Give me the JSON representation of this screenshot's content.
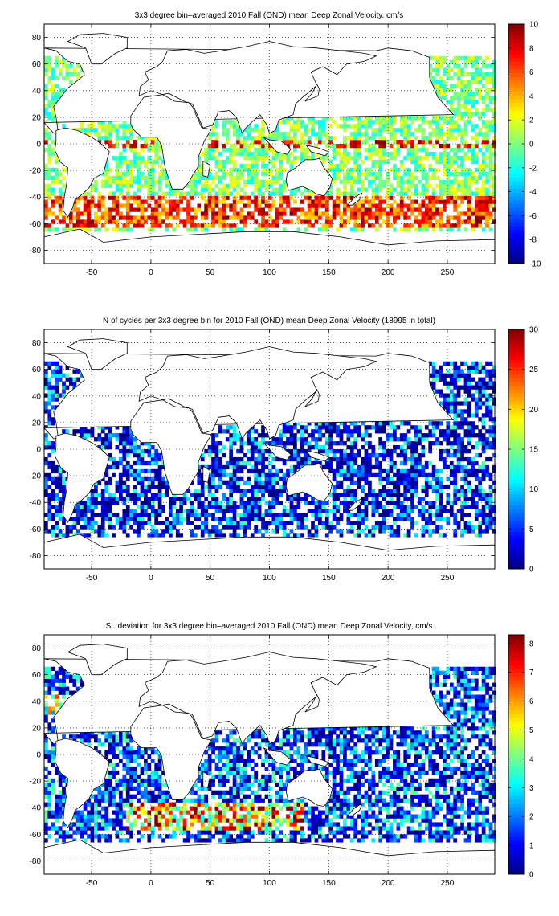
{
  "chart_data": [
    {
      "type": "heatmap",
      "title": "3x3 degree bin–averaged 2010 Fall (OND) mean Deep Zonal Velocity, cm/s",
      "xlim": [
        -90,
        290
      ],
      "ylim": [
        -90,
        90
      ],
      "x_ticks": [
        "-50",
        "0",
        "50",
        "100",
        "150",
        "200",
        "250"
      ],
      "y_ticks": [
        "80",
        "60",
        "40",
        "20",
        "0",
        "-20",
        "-40",
        "-60",
        "-80"
      ],
      "colorbar": {
        "min": -10,
        "max": 10,
        "ticks": [
          "10",
          "8",
          "6",
          "4",
          "2",
          "0",
          "-2",
          "-4",
          "-6",
          "-8",
          "-10"
        ]
      },
      "colormap": "jet",
      "grid": true,
      "bin_size_deg": 3,
      "field": "zonal-velocity"
    },
    {
      "type": "heatmap",
      "title": "N of cycles per 3x3 degree bin for 2010 Fall (OND) mean Deep Zonal Velocity (18995 in total)",
      "xlim": [
        -90,
        290
      ],
      "ylim": [
        -90,
        90
      ],
      "x_ticks": [
        "-50",
        "0",
        "50",
        "100",
        "150",
        "200",
        "250"
      ],
      "y_ticks": [
        "80",
        "60",
        "40",
        "20",
        "0",
        "-20",
        "-40",
        "-60",
        "-80"
      ],
      "colorbar": {
        "min": 0,
        "max": 30,
        "ticks": [
          "30",
          "25",
          "20",
          "15",
          "10",
          "5",
          "0"
        ]
      },
      "colormap": "jet",
      "grid": true,
      "bin_size_deg": 3,
      "total_cycles": 18995,
      "field": "cycle-count"
    },
    {
      "type": "heatmap",
      "title": "St. deviation for 3x3 degree bin–averaged 2010 Fall (OND) mean Deep Zonal Velocity, cm/s",
      "xlim": [
        -90,
        290
      ],
      "ylim": [
        -90,
        90
      ],
      "x_ticks": [
        "-50",
        "0",
        "50",
        "100",
        "150",
        "200",
        "250"
      ],
      "y_ticks": [
        "80",
        "60",
        "40",
        "20",
        "0",
        "-20",
        "-40",
        "-60",
        "-80"
      ],
      "colorbar": {
        "min": 0,
        "max": 8.3,
        "ticks": [
          "8",
          "7",
          "6",
          "5",
          "4",
          "3",
          "2",
          "1",
          "0"
        ]
      },
      "colormap": "jet",
      "grid": true,
      "bin_size_deg": 3,
      "field": "standard-deviation"
    }
  ]
}
